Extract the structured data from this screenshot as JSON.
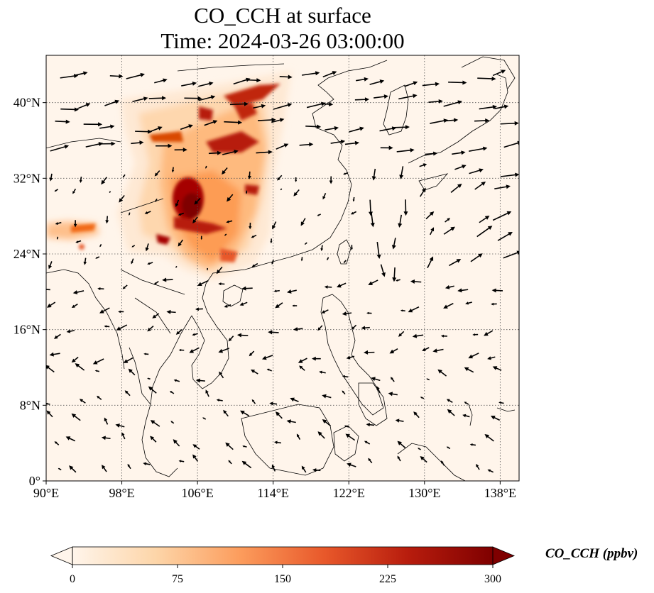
{
  "title": {
    "line1": "CO_CCH at surface",
    "line2": "Time: 2024-03-26 03:00:00"
  },
  "map": {
    "lon_range": [
      90,
      140
    ],
    "lat_range": [
      0,
      45
    ],
    "lon_ticks": [
      {
        "value": 90,
        "label": "90°E"
      },
      {
        "value": 98,
        "label": "98°E"
      },
      {
        "value": 106,
        "label": "106°E"
      },
      {
        "value": 114,
        "label": "114°E"
      },
      {
        "value": 122,
        "label": "122°E"
      },
      {
        "value": 130,
        "label": "130°E"
      },
      {
        "value": 138,
        "label": "138°E"
      }
    ],
    "lat_ticks": [
      {
        "value": 0,
        "label": "0°"
      },
      {
        "value": 8,
        "label": "8°N"
      },
      {
        "value": 16,
        "label": "16°N"
      },
      {
        "value": 24,
        "label": "24°N"
      },
      {
        "value": 32,
        "label": "32°N"
      },
      {
        "value": 40,
        "label": "40°N"
      }
    ],
    "gridlines": true,
    "field_colors": [
      "#fff5eb",
      "#fee6ce",
      "#fdd0a2",
      "#fdae6b",
      "#fd8d3c",
      "#f16913",
      "#d94801",
      "#a63603",
      "#7f2704"
    ]
  },
  "colorbar": {
    "label": "CO_CCH (ppbv)",
    "min": 0,
    "max": 300,
    "extend": "both",
    "ticks": [
      {
        "value": 0,
        "label": "0"
      },
      {
        "value": 75,
        "label": "75"
      },
      {
        "value": 150,
        "label": "150"
      },
      {
        "value": 225,
        "label": "225"
      },
      {
        "value": 300,
        "label": "300"
      }
    ],
    "colors": [
      "#fff5eb",
      "#fdd5a8",
      "#fc9c5c",
      "#e8582a",
      "#b71c0d",
      "#7f0000"
    ]
  }
}
